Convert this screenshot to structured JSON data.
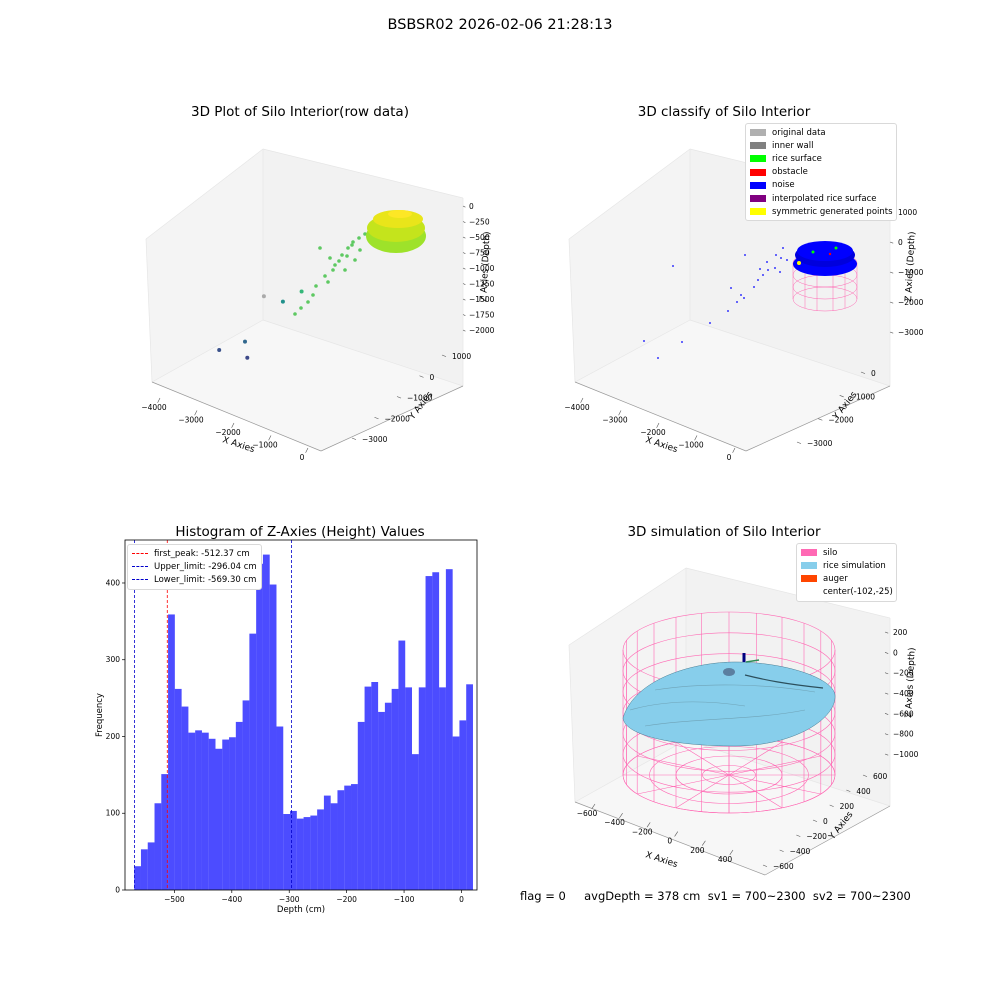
{
  "figure": {
    "suptitle": "BSBSR02 2026-02-06 21:28:13",
    "info_text": "flag = 0     avgDepth = 378 cm  sv1 = 700~2300  sv2 = 700~2300"
  },
  "chart_data": [
    {
      "type": "scatter",
      "id": "raw3d",
      "title": "3D Plot of Silo Interior(row data)",
      "xlabel": "X Axies",
      "ylabel": "Y Axies",
      "zlabel": "Z Axies (Depth)",
      "x_ticks": [
        "−4000",
        "−3000",
        "−2000",
        "−1000",
        "0"
      ],
      "y_ticks": [
        "1000",
        "0",
        "−1000",
        "−2000",
        "−3000"
      ],
      "z_ticks": [
        "0",
        "−250",
        "−500",
        "−750",
        "−1000",
        "−1250",
        "−1500",
        "−1750",
        "−2000"
      ],
      "points": [
        {
          "x": -3750,
          "y": -1300,
          "z": -2100,
          "color": "#3b528b"
        },
        {
          "x": -3300,
          "y": -1000,
          "z": -1950,
          "color": "#31688e"
        },
        {
          "x": -3050,
          "y": -1300,
          "z": -2050,
          "color": "#3e4a89"
        },
        {
          "x": -3600,
          "y": 200,
          "z": -1650,
          "color": "#aaaaaa"
        },
        {
          "x": -3000,
          "y": 0,
          "z": -1550,
          "color": "#21918c"
        },
        {
          "x": -2600,
          "y": 100,
          "z": -1350,
          "color": "#35b779"
        }
      ]
    },
    {
      "type": "scatter",
      "id": "classify3d",
      "title": "3D classify of Silo Interior",
      "zlabel": "Z Axies (Depth)",
      "xlabel": "X Axies",
      "ylabel": "Y Axies",
      "x_ticks": [
        "−4000",
        "−3000",
        "−2000",
        "−1000",
        "0"
      ],
      "y_ticks": [
        "0",
        "−1000",
        "−2000",
        "−3000"
      ],
      "z_ticks": [
        "1000",
        "0",
        "−1000",
        "−2000",
        "−3000"
      ],
      "legend": [
        {
          "label": "original data",
          "color": "#b0b0b0"
        },
        {
          "label": "inner wall",
          "color": "#808080"
        },
        {
          "label": "rice surface",
          "color": "#00ff00"
        },
        {
          "label": "obstacle",
          "color": "#ff0000"
        },
        {
          "label": "noise",
          "color": "#0000ff"
        },
        {
          "label": "interpolated rice surface",
          "color": "#800080"
        },
        {
          "label": "symmetric generated points",
          "color": "#ffff00"
        }
      ]
    },
    {
      "type": "bar",
      "id": "histogram",
      "title": "Histogram of Z-Axies (Height) Values",
      "xlabel": "Depth (cm)",
      "ylabel": "Frequency",
      "xlim": [
        -586,
        27
      ],
      "ylim": [
        0,
        456
      ],
      "bar_color": "#0000ff",
      "bin_start": -570.0,
      "bin_width": 11.8,
      "x_ticks": [
        -500,
        -400,
        -300,
        -200,
        -100,
        0
      ],
      "y_ticks": [
        0,
        100,
        200,
        300,
        400
      ],
      "values": [
        31,
        53,
        62,
        113,
        151,
        359,
        262,
        239,
        205,
        208,
        205,
        197,
        184,
        196,
        199,
        219,
        247,
        334,
        425,
        437,
        398,
        213,
        99,
        103,
        93,
        95,
        97,
        105,
        123,
        113,
        130,
        136,
        138,
        219,
        265,
        271,
        232,
        244,
        262,
        325,
        264,
        177,
        264,
        409,
        414,
        264,
        418,
        200,
        221,
        268
      ],
      "vlines": [
        {
          "label": "first_peak: -512.37 cm",
          "x": -512.37,
          "color": "#ff0000"
        },
        {
          "label": "Upper_limit: -296.04 cm",
          "x": -296.04,
          "color": "#0000cc"
        },
        {
          "label": "Lower_limit: -569.30 cm",
          "x": -569.3,
          "color": "#0000cc"
        }
      ]
    },
    {
      "type": "scatter",
      "id": "sim3d",
      "title": "3D simulation of Silo Interior",
      "xlabel": "X Axies",
      "ylabel": "Y Axies",
      "zlabel": "Z Axies (Depth)",
      "x_ticks": [
        "−600",
        "−400",
        "−200",
        "0",
        "200",
        "400"
      ],
      "y_ticks": [
        "600",
        "400",
        "200",
        "0",
        "−200",
        "−400",
        "−600"
      ],
      "z_ticks": [
        "200",
        "0",
        "−200",
        "−400",
        "−600",
        "−800",
        "−1000"
      ],
      "legend": [
        {
          "label": "silo",
          "color": "#ff69b4"
        },
        {
          "label": "rice simulation",
          "color": "#87ceeb"
        },
        {
          "label": "auger",
          "color": "#ff4500"
        },
        {
          "label": "center(-102,-25)",
          "color": ""
        }
      ]
    }
  ]
}
